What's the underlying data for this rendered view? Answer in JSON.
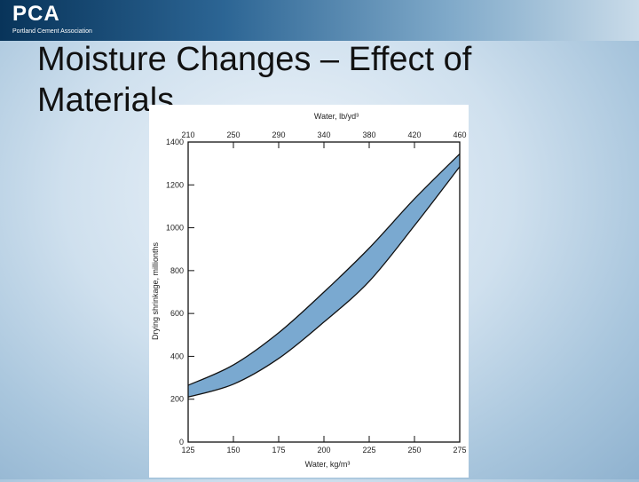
{
  "header": {
    "logo_text": "PCA",
    "logo_subtitle": "Portland Cement Association"
  },
  "slide": {
    "title": "Moisture Changes – Effect of Materials"
  },
  "colors": {
    "band_fill": "#7aa9d0",
    "band_stroke": "#111111"
  },
  "chart_data": {
    "type": "area",
    "title": "",
    "xlabel": "Water, kg/m³",
    "x2label": "Water, lb/yd³",
    "ylabel": "Drying shrinkage, millionths",
    "xlim": [
      125,
      275
    ],
    "ylim": [
      0,
      1400
    ],
    "x_ticks": [
      125,
      150,
      175,
      200,
      225,
      250,
      275
    ],
    "x2_ticks": [
      210,
      250,
      290,
      340,
      380,
      420,
      460
    ],
    "y_ticks": [
      0,
      200,
      400,
      600,
      800,
      1000,
      1200,
      1400
    ],
    "grid": false,
    "series": [
      {
        "x": [
          125,
          150,
          175,
          200,
          225,
          250,
          275
        ],
        "upper": [
          265,
          360,
          510,
          700,
          905,
          1135,
          1345
        ],
        "lower": [
          210,
          270,
          390,
          560,
          750,
          1010,
          1285
        ]
      }
    ]
  }
}
